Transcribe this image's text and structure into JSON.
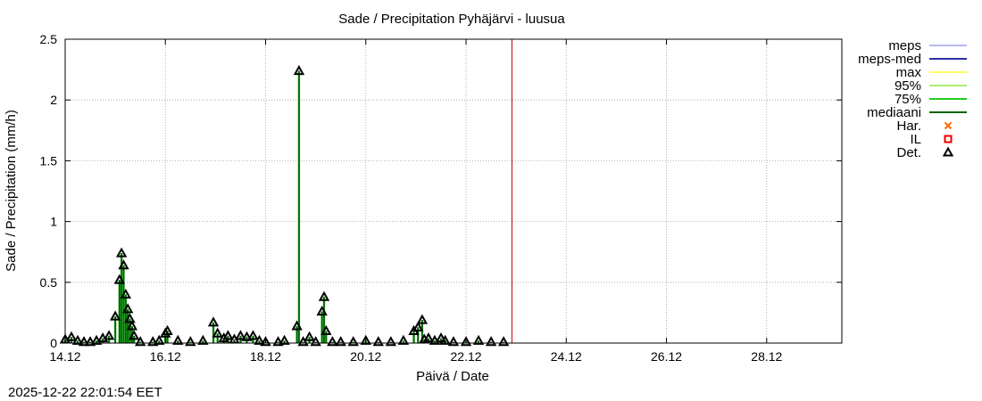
{
  "chart_data": {
    "type": "bar",
    "title": "Sade / Precipitation  Pyhäjärvi - luusua",
    "xlabel": "Päivä / Date",
    "ylabel": "Sade / Precipitation (mm/h)",
    "timestamp": "2025-12-22 22:01:54 EET",
    "ylim": [
      0,
      2.5
    ],
    "yticks": [
      0,
      0.5,
      1,
      1.5,
      2,
      2.5
    ],
    "ytick_labels": [
      "0",
      "0.5",
      "1",
      "1.5",
      "2",
      "2.5"
    ],
    "x_range_days": [
      "2025-12-14",
      "2025-12-29 12:00"
    ],
    "xticks": [
      "14.12",
      "16.12",
      "18.12",
      "20.12",
      "22.12",
      "24.12",
      "26.12",
      "28.12"
    ],
    "now_marker": "2025-12-22 22:00",
    "grid": true,
    "legend_position": "outside-right",
    "legend": [
      {
        "label": "meps",
        "color": "#b8b8f0",
        "kind": "line"
      },
      {
        "label": "meps-med",
        "color": "#2e2ea8",
        "kind": "line"
      },
      {
        "label": "max",
        "color": "#ffff66",
        "kind": "line"
      },
      {
        "label": "95%",
        "color": "#a8ee70",
        "kind": "line"
      },
      {
        "label": "75%",
        "color": "#22cc22",
        "kind": "line"
      },
      {
        "label": "mediaani",
        "color": "#006400",
        "kind": "line"
      },
      {
        "label": "Har.",
        "color": "#ff6600",
        "kind": "cross"
      },
      {
        "label": "IL",
        "color": "#ee0000",
        "kind": "square"
      },
      {
        "label": "Det.",
        "color": "#000000",
        "kind": "triangle"
      }
    ],
    "series": [
      {
        "name": "Det.",
        "points": [
          [
            "2025-12-14 00:00",
            0.03
          ],
          [
            "2025-12-14 03:00",
            0.05
          ],
          [
            "2025-12-14 06:00",
            0.02
          ],
          [
            "2025-12-14 09:00",
            0.01
          ],
          [
            "2025-12-14 12:00",
            0.01
          ],
          [
            "2025-12-14 15:00",
            0.02
          ],
          [
            "2025-12-14 18:00",
            0.04
          ],
          [
            "2025-12-14 21:00",
            0.06
          ],
          [
            "2025-12-15 00:00",
            0.22
          ],
          [
            "2025-12-15 02:00",
            0.52
          ],
          [
            "2025-12-15 03:00",
            0.74
          ],
          [
            "2025-12-15 04:00",
            0.64
          ],
          [
            "2025-12-15 05:00",
            0.4
          ],
          [
            "2025-12-15 06:00",
            0.28
          ],
          [
            "2025-12-15 07:00",
            0.2
          ],
          [
            "2025-12-15 08:00",
            0.14
          ],
          [
            "2025-12-15 09:00",
            0.06
          ],
          [
            "2025-12-15 12:00",
            0.01
          ],
          [
            "2025-12-15 18:00",
            0.01
          ],
          [
            "2025-12-15 21:00",
            0.02
          ],
          [
            "2025-12-16 00:00",
            0.08
          ],
          [
            "2025-12-16 01:00",
            0.1
          ],
          [
            "2025-12-16 06:00",
            0.02
          ],
          [
            "2025-12-16 12:00",
            0.01
          ],
          [
            "2025-12-16 18:00",
            0.02
          ],
          [
            "2025-12-16 23:00",
            0.17
          ],
          [
            "2025-12-17 01:00",
            0.08
          ],
          [
            "2025-12-17 04:00",
            0.04
          ],
          [
            "2025-12-17 06:00",
            0.06
          ],
          [
            "2025-12-17 09:00",
            0.03
          ],
          [
            "2025-12-17 12:00",
            0.06
          ],
          [
            "2025-12-17 15:00",
            0.05
          ],
          [
            "2025-12-17 18:00",
            0.06
          ],
          [
            "2025-12-17 21:00",
            0.02
          ],
          [
            "2025-12-18 00:00",
            0.01
          ],
          [
            "2025-12-18 06:00",
            0.01
          ],
          [
            "2025-12-18 09:00",
            0.02
          ],
          [
            "2025-12-18 15:00",
            0.14
          ],
          [
            "2025-12-18 16:00",
            2.24
          ],
          [
            "2025-12-18 18:00",
            0.01
          ],
          [
            "2025-12-18 21:00",
            0.05
          ],
          [
            "2025-12-19 00:00",
            0.01
          ],
          [
            "2025-12-19 03:00",
            0.26
          ],
          [
            "2025-12-19 04:00",
            0.38
          ],
          [
            "2025-12-19 05:00",
            0.1
          ],
          [
            "2025-12-19 08:00",
            0.01
          ],
          [
            "2025-12-19 12:00",
            0.01
          ],
          [
            "2025-12-19 18:00",
            0.01
          ],
          [
            "2025-12-20 00:00",
            0.02
          ],
          [
            "2025-12-20 06:00",
            0.01
          ],
          [
            "2025-12-20 12:00",
            0.01
          ],
          [
            "2025-12-20 18:00",
            0.02
          ],
          [
            "2025-12-20 23:00",
            0.1
          ],
          [
            "2025-12-21 01:00",
            0.13
          ],
          [
            "2025-12-21 03:00",
            0.19
          ],
          [
            "2025-12-21 04:00",
            0.03
          ],
          [
            "2025-12-21 06:00",
            0.04
          ],
          [
            "2025-12-21 09:00",
            0.02
          ],
          [
            "2025-12-21 12:00",
            0.04
          ],
          [
            "2025-12-21 14:00",
            0.02
          ],
          [
            "2025-12-21 18:00",
            0.01
          ],
          [
            "2025-12-22 00:00",
            0.01
          ],
          [
            "2025-12-22 06:00",
            0.02
          ],
          [
            "2025-12-22 12:00",
            0.01
          ],
          [
            "2025-12-22 18:00",
            0.01
          ]
        ]
      }
    ]
  }
}
